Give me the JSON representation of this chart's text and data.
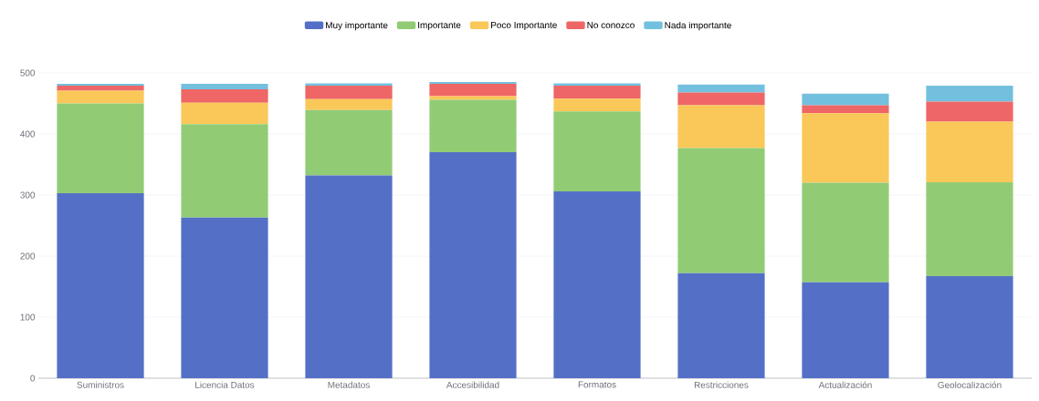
{
  "chart_data": {
    "type": "bar",
    "stacked": true,
    "categories": [
      "Suministros",
      "Licencia Datos",
      "Metadatos",
      "Accesibilidad",
      "Formatos",
      "Restricciones",
      "Actualización",
      "Geolocalización"
    ],
    "series": [
      {
        "name": "Muy importante",
        "color": "#5470c6",
        "values": [
          303,
          263,
          332,
          370,
          306,
          172,
          157,
          167
        ]
      },
      {
        "name": "Importante",
        "color": "#91cc75",
        "values": [
          147,
          153,
          107,
          86,
          131,
          205,
          163,
          154
        ]
      },
      {
        "name": "Poco Importante",
        "color": "#fac858",
        "values": [
          21,
          35,
          18,
          6,
          21,
          70,
          114,
          99
        ]
      },
      {
        "name": "No conozco",
        "color": "#ee6666",
        "values": [
          8,
          22,
          22,
          20,
          21,
          21,
          13,
          33
        ]
      },
      {
        "name": "Nada importante",
        "color": "#73c0de",
        "values": [
          3,
          9,
          4,
          3,
          4,
          13,
          19,
          26
        ]
      }
    ],
    "ylim": [
      0,
      500
    ],
    "yticks": [
      0,
      100,
      200,
      300,
      400,
      500
    ],
    "grid": "y",
    "legend": "top"
  }
}
